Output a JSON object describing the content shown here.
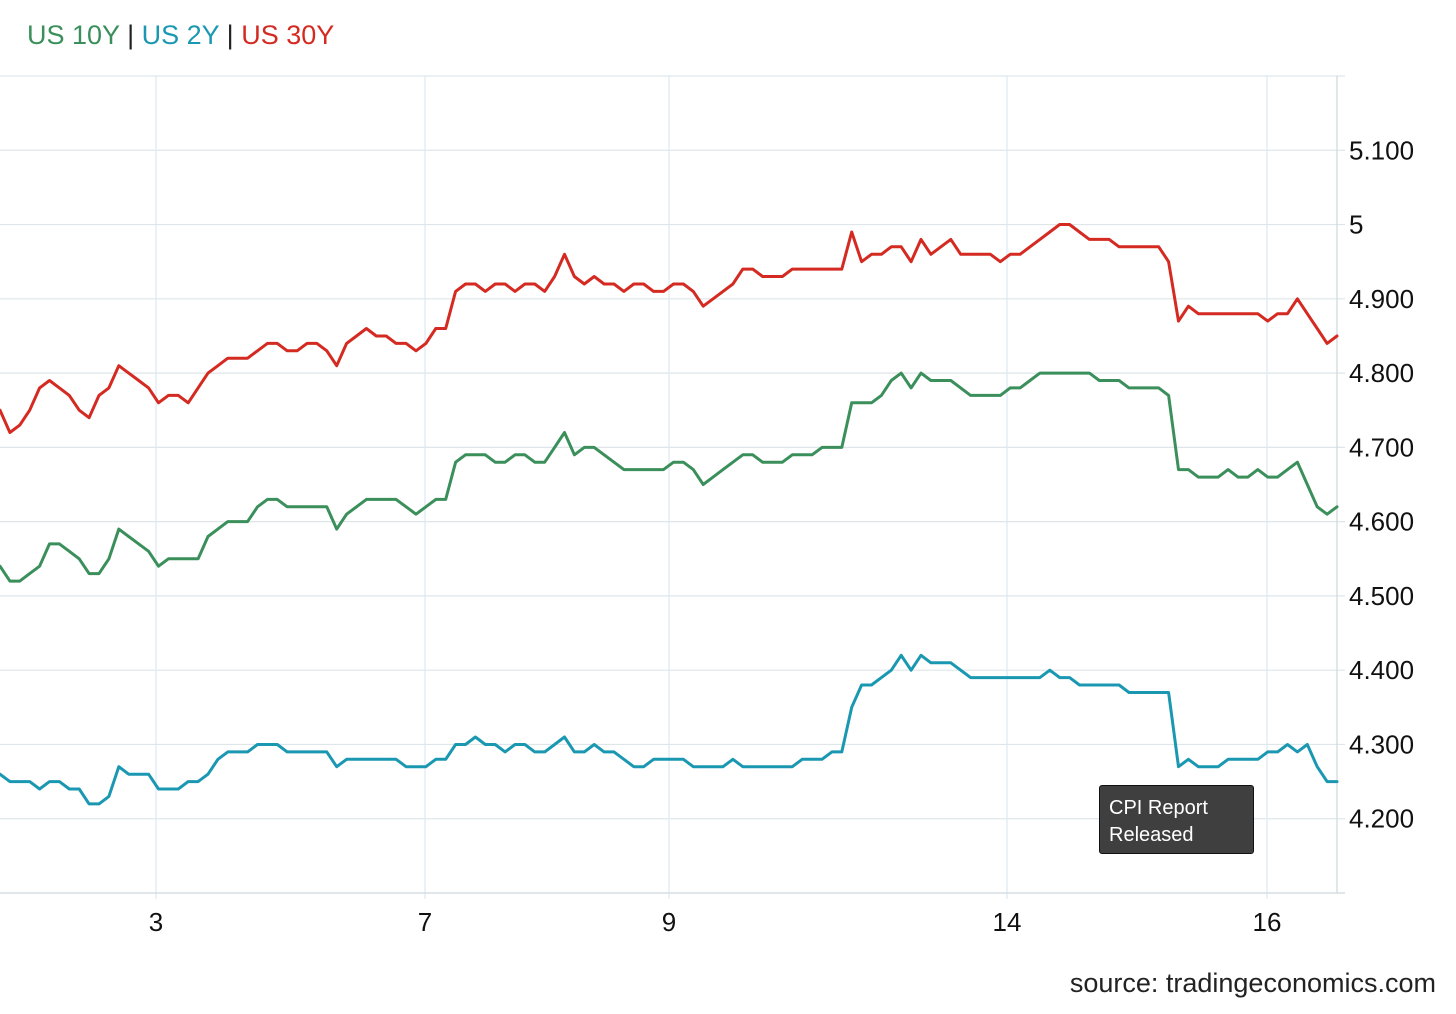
{
  "legend": {
    "items": [
      {
        "label": "US 10Y",
        "color": "#3a8f5b"
      },
      {
        "label": "US 2Y",
        "color": "#1b98b1"
      },
      {
        "label": "US 30Y",
        "color": "#d42a21"
      }
    ],
    "separator": "|"
  },
  "tooltip": {
    "line1": "CPI Report",
    "line2": "Released"
  },
  "source": "source: tradingeconomics.com",
  "chart_data": {
    "type": "line",
    "title": "",
    "xlabel": "",
    "ylabel": "",
    "x_ticks": [
      "3",
      "7",
      "9",
      "14",
      "16"
    ],
    "y_ticks": [
      "4.200",
      "4.300",
      "4.400",
      "4.500",
      "4.600",
      "4.700",
      "4.800",
      "4.900",
      "5",
      "5.100"
    ],
    "ylim": [
      4.1,
      5.2
    ],
    "grid": true,
    "legend_position": "top-left",
    "series": [
      {
        "name": "US 30Y",
        "color": "#d42a21",
        "values": [
          4.75,
          4.72,
          4.73,
          4.75,
          4.78,
          4.79,
          4.78,
          4.77,
          4.75,
          4.74,
          4.77,
          4.78,
          4.81,
          4.8,
          4.79,
          4.78,
          4.76,
          4.77,
          4.77,
          4.76,
          4.78,
          4.8,
          4.81,
          4.82,
          4.82,
          4.82,
          4.83,
          4.84,
          4.84,
          4.83,
          4.83,
          4.84,
          4.84,
          4.83,
          4.81,
          4.84,
          4.85,
          4.86,
          4.85,
          4.85,
          4.84,
          4.84,
          4.83,
          4.84,
          4.86,
          4.86,
          4.91,
          4.92,
          4.92,
          4.91,
          4.92,
          4.92,
          4.91,
          4.92,
          4.92,
          4.91,
          4.93,
          4.96,
          4.93,
          4.92,
          4.93,
          4.92,
          4.92,
          4.91,
          4.92,
          4.92,
          4.91,
          4.91,
          4.92,
          4.92,
          4.91,
          4.89,
          4.9,
          4.91,
          4.92,
          4.94,
          4.94,
          4.93,
          4.93,
          4.93,
          4.94,
          4.94,
          4.94,
          4.94,
          4.94,
          4.94,
          4.99,
          4.95,
          4.96,
          4.96,
          4.97,
          4.97,
          4.95,
          4.98,
          4.96,
          4.97,
          4.98,
          4.96,
          4.96,
          4.96,
          4.96,
          4.95,
          4.96,
          4.96,
          4.97,
          4.98,
          4.99,
          5.0,
          5.0,
          4.99,
          4.98,
          4.98,
          4.98,
          4.97,
          4.97,
          4.97,
          4.97,
          4.97,
          4.95,
          4.87,
          4.89,
          4.88,
          4.88,
          4.88,
          4.88,
          4.88,
          4.88,
          4.88,
          4.87,
          4.88,
          4.88,
          4.9,
          4.88,
          4.86,
          4.84,
          4.85
        ]
      },
      {
        "name": "US 10Y",
        "color": "#3a8f5b",
        "values": [
          4.54,
          4.52,
          4.52,
          4.53,
          4.54,
          4.57,
          4.57,
          4.56,
          4.55,
          4.53,
          4.53,
          4.55,
          4.59,
          4.58,
          4.57,
          4.56,
          4.54,
          4.55,
          4.55,
          4.55,
          4.55,
          4.58,
          4.59,
          4.6,
          4.6,
          4.6,
          4.62,
          4.63,
          4.63,
          4.62,
          4.62,
          4.62,
          4.62,
          4.62,
          4.59,
          4.61,
          4.62,
          4.63,
          4.63,
          4.63,
          4.63,
          4.62,
          4.61,
          4.62,
          4.63,
          4.63,
          4.68,
          4.69,
          4.69,
          4.69,
          4.68,
          4.68,
          4.69,
          4.69,
          4.68,
          4.68,
          4.7,
          4.72,
          4.69,
          4.7,
          4.7,
          4.69,
          4.68,
          4.67,
          4.67,
          4.67,
          4.67,
          4.67,
          4.68,
          4.68,
          4.67,
          4.65,
          4.66,
          4.67,
          4.68,
          4.69,
          4.69,
          4.68,
          4.68,
          4.68,
          4.69,
          4.69,
          4.69,
          4.7,
          4.7,
          4.7,
          4.76,
          4.76,
          4.76,
          4.77,
          4.79,
          4.8,
          4.78,
          4.8,
          4.79,
          4.79,
          4.79,
          4.78,
          4.77,
          4.77,
          4.77,
          4.77,
          4.78,
          4.78,
          4.79,
          4.8,
          4.8,
          4.8,
          4.8,
          4.8,
          4.8,
          4.79,
          4.79,
          4.79,
          4.78,
          4.78,
          4.78,
          4.78,
          4.77,
          4.67,
          4.67,
          4.66,
          4.66,
          4.66,
          4.67,
          4.66,
          4.66,
          4.67,
          4.66,
          4.66,
          4.67,
          4.68,
          4.65,
          4.62,
          4.61,
          4.62
        ]
      },
      {
        "name": "US 2Y",
        "color": "#1b98b1",
        "values": [
          4.26,
          4.25,
          4.25,
          4.25,
          4.24,
          4.25,
          4.25,
          4.24,
          4.24,
          4.22,
          4.22,
          4.23,
          4.27,
          4.26,
          4.26,
          4.26,
          4.24,
          4.24,
          4.24,
          4.25,
          4.25,
          4.26,
          4.28,
          4.29,
          4.29,
          4.29,
          4.3,
          4.3,
          4.3,
          4.29,
          4.29,
          4.29,
          4.29,
          4.29,
          4.27,
          4.28,
          4.28,
          4.28,
          4.28,
          4.28,
          4.28,
          4.27,
          4.27,
          4.27,
          4.28,
          4.28,
          4.3,
          4.3,
          4.31,
          4.3,
          4.3,
          4.29,
          4.3,
          4.3,
          4.29,
          4.29,
          4.3,
          4.31,
          4.29,
          4.29,
          4.3,
          4.29,
          4.29,
          4.28,
          4.27,
          4.27,
          4.28,
          4.28,
          4.28,
          4.28,
          4.27,
          4.27,
          4.27,
          4.27,
          4.28,
          4.27,
          4.27,
          4.27,
          4.27,
          4.27,
          4.27,
          4.28,
          4.28,
          4.28,
          4.29,
          4.29,
          4.35,
          4.38,
          4.38,
          4.39,
          4.4,
          4.42,
          4.4,
          4.42,
          4.41,
          4.41,
          4.41,
          4.4,
          4.39,
          4.39,
          4.39,
          4.39,
          4.39,
          4.39,
          4.39,
          4.39,
          4.4,
          4.39,
          4.39,
          4.38,
          4.38,
          4.38,
          4.38,
          4.38,
          4.37,
          4.37,
          4.37,
          4.37,
          4.37,
          4.27,
          4.28,
          4.27,
          4.27,
          4.27,
          4.28,
          4.28,
          4.28,
          4.28,
          4.29,
          4.29,
          4.3,
          4.29,
          4.3,
          4.27,
          4.25,
          4.25
        ]
      }
    ]
  }
}
